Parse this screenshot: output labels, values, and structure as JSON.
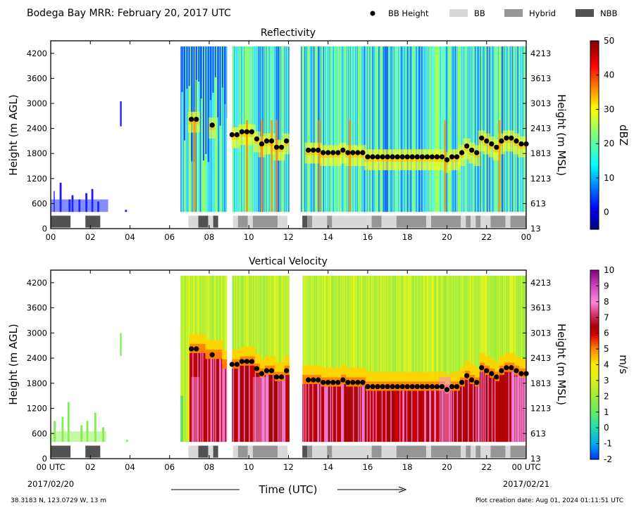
{
  "header": {
    "title": "Bodega Bay MRR:  February 20, 2017 UTC",
    "legend": [
      {
        "label": "BB Height",
        "kind": "dot",
        "color": "#000000"
      },
      {
        "label": "BB",
        "kind": "swatch",
        "color": "#d9d9d9"
      },
      {
        "label": "Hybrid",
        "kind": "swatch",
        "color": "#969696"
      },
      {
        "label": "NBB",
        "kind": "swatch",
        "color": "#525252"
      }
    ]
  },
  "chart_data": [
    {
      "type": "heatmap",
      "title": "Reflectivity",
      "ylabel": "Height (m AGL)",
      "ylabel_right": "Height (m MSL)",
      "xlim": [
        0,
        24
      ],
      "ylim": [
        0,
        4500
      ],
      "x_tick_labels": [
        "00",
        "02",
        "04",
        "06",
        "08",
        "10",
        "12",
        "14",
        "16",
        "18",
        "20",
        "22",
        "00"
      ],
      "y_ticks": [
        0,
        600,
        1200,
        1800,
        2400,
        3000,
        3600,
        4200
      ],
      "y_ticks_right": [
        "13",
        "613",
        "1213",
        "1813",
        "2413",
        "3013",
        "3613",
        "4213"
      ],
      "colorbar": {
        "label": "dBZ",
        "min": -5,
        "max": 50,
        "ticks": [
          0,
          10,
          20,
          30,
          40,
          50
        ],
        "scheme": "jet"
      }
    },
    {
      "type": "heatmap",
      "title": "Vertical Velocity",
      "ylabel": "Height (m AGL)",
      "ylabel_right": "Height (m MSL)",
      "xlabel": "Time (UTC)",
      "xlim": [
        0,
        24
      ],
      "ylim": [
        0,
        4500
      ],
      "x_tick_labels": [
        "00 UTC",
        "02",
        "04",
        "06",
        "08",
        "10",
        "12",
        "14",
        "16",
        "18",
        "20",
        "22",
        "00 UTC"
      ],
      "x_date_labels": {
        "start": "2017/02/20",
        "end": "2017/02/21"
      },
      "y_ticks": [
        0,
        600,
        1200,
        1800,
        2400,
        3000,
        3600,
        4200
      ],
      "y_ticks_right": [
        "13",
        "613",
        "1213",
        "1813",
        "2413",
        "3013",
        "3613",
        "4213"
      ],
      "colorbar": {
        "label": "m/s",
        "min": -2,
        "max": 10,
        "ticks": [
          -2,
          -1,
          0,
          1,
          2,
          3,
          4,
          5,
          6,
          7,
          8,
          9,
          10
        ],
        "scheme": "velocity"
      }
    }
  ],
  "bb_height": {
    "time": [
      7.1,
      7.35,
      8.15,
      9.15,
      9.4,
      9.65,
      9.9,
      10.15,
      10.4,
      10.65,
      10.9,
      11.15,
      11.4,
      11.65,
      11.9,
      13.0,
      13.25,
      13.5,
      13.75,
      14.0,
      14.25,
      14.5,
      14.75,
      15.0,
      15.25,
      15.5,
      15.75,
      16.0,
      16.25,
      16.5,
      16.75,
      17.0,
      17.25,
      17.5,
      17.75,
      18.0,
      18.25,
      18.5,
      18.75,
      19.0,
      19.25,
      19.5,
      19.75,
      20.0,
      20.25,
      20.5,
      20.75,
      21.0,
      21.25,
      21.5,
      21.75,
      22.0,
      22.25,
      22.5,
      22.75,
      23.0,
      23.25,
      23.5,
      23.75,
      24.0
    ],
    "height": [
      2620,
      2620,
      2480,
      2250,
      2250,
      2320,
      2320,
      2320,
      2150,
      2030,
      2100,
      2100,
      1950,
      1950,
      2100,
      1880,
      1880,
      1880,
      1820,
      1820,
      1820,
      1820,
      1880,
      1820,
      1820,
      1820,
      1820,
      1720,
      1720,
      1720,
      1720,
      1720,
      1720,
      1720,
      1720,
      1720,
      1720,
      1720,
      1720,
      1720,
      1720,
      1720,
      1720,
      1650,
      1720,
      1720,
      1820,
      1980,
      1880,
      1820,
      2170,
      2100,
      2030,
      1950,
      2100,
      2170,
      2170,
      2100,
      2030,
      2030
    ]
  },
  "bb_type_bar": [
    {
      "start": 0.0,
      "end": 1.0,
      "type": "NBB"
    },
    {
      "start": 1.75,
      "end": 2.5,
      "type": "NBB"
    },
    {
      "start": 6.95,
      "end": 7.45,
      "type": "BB"
    },
    {
      "start": 7.45,
      "end": 7.95,
      "type": "NBB"
    },
    {
      "start": 7.95,
      "end": 8.2,
      "type": "BB"
    },
    {
      "start": 8.2,
      "end": 8.45,
      "type": "NBB"
    },
    {
      "start": 9.2,
      "end": 9.45,
      "type": "BB"
    },
    {
      "start": 9.45,
      "end": 9.95,
      "type": "Hybrid"
    },
    {
      "start": 9.95,
      "end": 10.2,
      "type": "BB"
    },
    {
      "start": 10.2,
      "end": 11.45,
      "type": "Hybrid"
    },
    {
      "start": 11.45,
      "end": 11.95,
      "type": "BB"
    },
    {
      "start": 12.7,
      "end": 12.95,
      "type": "NBB"
    },
    {
      "start": 12.95,
      "end": 13.2,
      "type": "Hybrid"
    },
    {
      "start": 13.2,
      "end": 13.95,
      "type": "BB"
    },
    {
      "start": 13.95,
      "end": 14.2,
      "type": "Hybrid"
    },
    {
      "start": 14.2,
      "end": 16.2,
      "type": "BB"
    },
    {
      "start": 16.2,
      "end": 16.7,
      "type": "Hybrid"
    },
    {
      "start": 16.7,
      "end": 17.45,
      "type": "BB"
    },
    {
      "start": 17.45,
      "end": 18.95,
      "type": "Hybrid"
    },
    {
      "start": 18.95,
      "end": 19.2,
      "type": "BB"
    },
    {
      "start": 19.2,
      "end": 20.7,
      "type": "Hybrid"
    },
    {
      "start": 20.7,
      "end": 20.95,
      "type": "BB"
    },
    {
      "start": 20.95,
      "end": 21.2,
      "type": "Hybrid"
    },
    {
      "start": 21.2,
      "end": 21.45,
      "type": "BB"
    },
    {
      "start": 21.45,
      "end": 21.7,
      "type": "Hybrid"
    },
    {
      "start": 21.7,
      "end": 22.2,
      "type": "BB"
    },
    {
      "start": 22.2,
      "end": 22.95,
      "type": "Hybrid"
    },
    {
      "start": 22.95,
      "end": 23.2,
      "type": "BB"
    },
    {
      "start": 23.2,
      "end": 24.0,
      "type": "Hybrid"
    }
  ],
  "footer": {
    "location": "38.3183 N, 123.0729 W, 13 m",
    "creation_date": "Plot creation date: Aug 01, 2024 01:11:51 UTC"
  }
}
